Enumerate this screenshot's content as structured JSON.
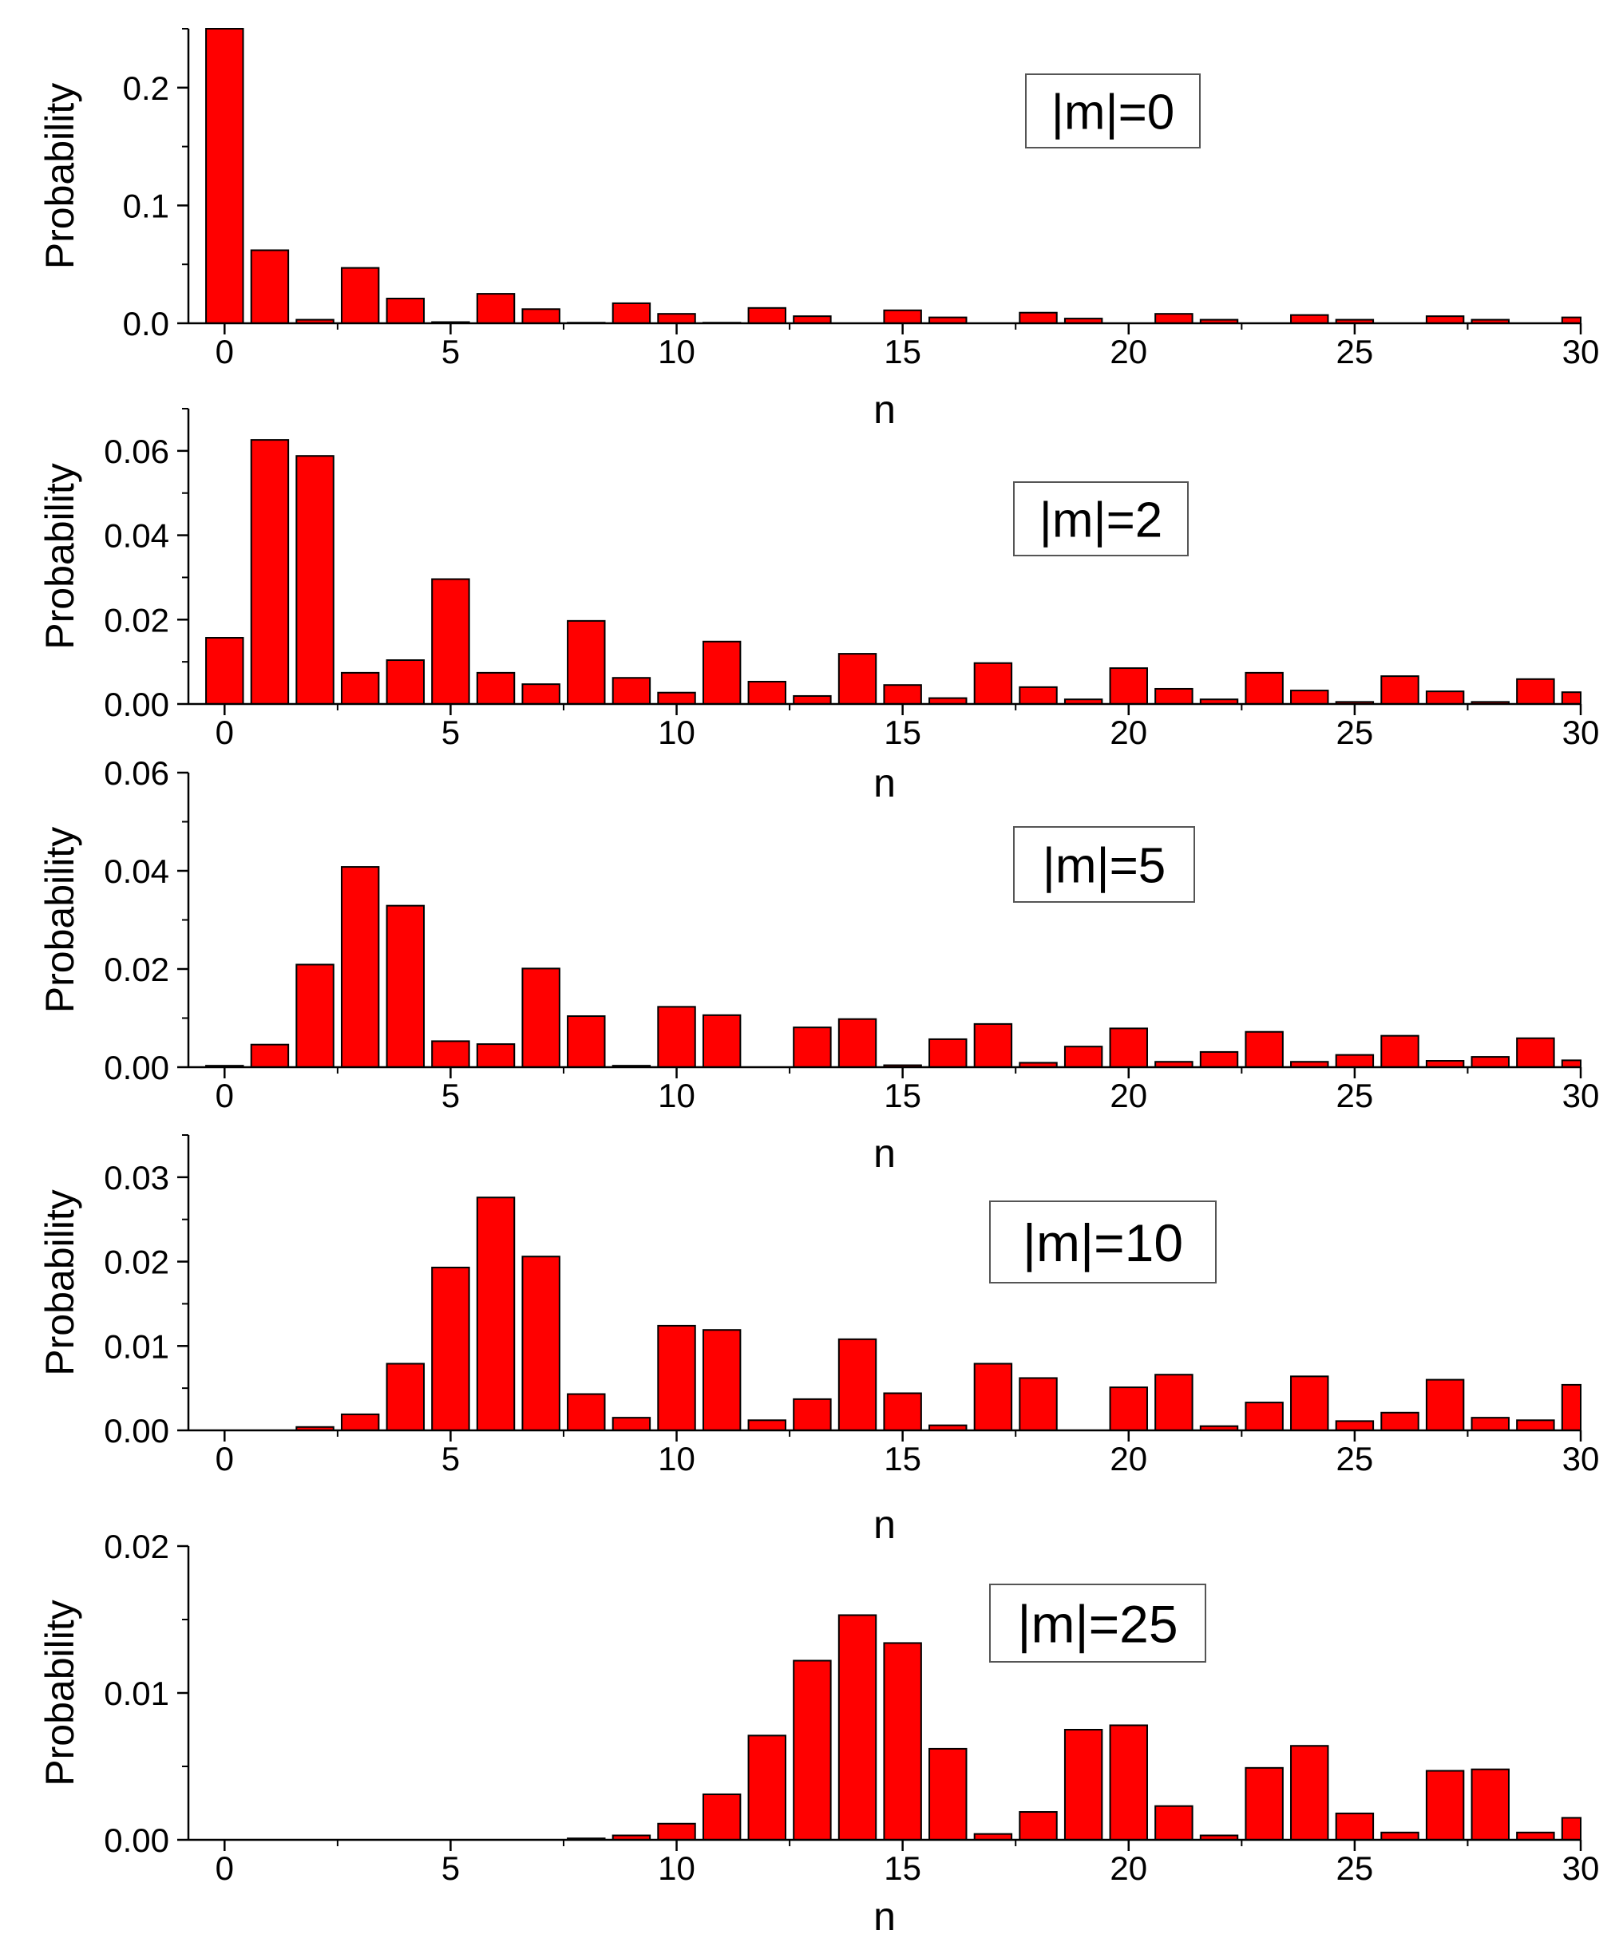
{
  "figure": {
    "background": "#ffffff",
    "bar_color": "#ff0000",
    "bar_edge_color": "#000000"
  },
  "chart_data": [
    {
      "type": "bar",
      "panel_label": "|m|=0",
      "xlabel": "n",
      "ylabel": "Probability",
      "xlim": [
        -0.8,
        30.0
      ],
      "ylim": [
        0.0,
        0.25
      ],
      "xticks": [
        0,
        5,
        10,
        15,
        20,
        25,
        30
      ],
      "xtick_labels": [
        "0",
        "5",
        "10",
        "15",
        "20",
        "25",
        "30"
      ],
      "yticks": [
        0.0,
        0.1,
        0.2
      ],
      "ytick_labels": [
        "0.0",
        "0.1",
        "0.2"
      ],
      "x": [
        0,
        1,
        2,
        3,
        4,
        5,
        6,
        7,
        8,
        9,
        10,
        11,
        12,
        13,
        14,
        15,
        16,
        17,
        18,
        19,
        20,
        21,
        22,
        23,
        24,
        25,
        26,
        27,
        28,
        29,
        30
      ],
      "values": [
        0.25,
        0.062,
        0.003,
        0.047,
        0.021,
        0.001,
        0.025,
        0.012,
        0.0005,
        0.017,
        0.008,
        0.0005,
        0.013,
        0.006,
        0.0,
        0.011,
        0.005,
        0.0,
        0.009,
        0.004,
        0.0,
        0.008,
        0.003,
        0.0,
        0.007,
        0.003,
        0.0,
        0.006,
        0.003,
        0.0,
        0.005
      ]
    },
    {
      "type": "bar",
      "panel_label": "|m|=2",
      "xlabel": "n",
      "ylabel": "Probability",
      "xlim": [
        -0.8,
        30.0
      ],
      "ylim": [
        0.0,
        0.07
      ],
      "xticks": [
        0,
        5,
        10,
        15,
        20,
        25,
        30
      ],
      "xtick_labels": [
        "0",
        "5",
        "10",
        "15",
        "20",
        "25",
        "30"
      ],
      "yticks": [
        0.0,
        0.02,
        0.04,
        0.06
      ],
      "ytick_labels": [
        "0.00",
        "0.02",
        "0.04",
        "0.06"
      ],
      "x": [
        0,
        1,
        2,
        3,
        4,
        5,
        6,
        7,
        8,
        9,
        10,
        11,
        12,
        13,
        14,
        15,
        16,
        17,
        18,
        19,
        20,
        21,
        22,
        23,
        24,
        25,
        26,
        27,
        28,
        29,
        30
      ],
      "values": [
        0.0157,
        0.0626,
        0.0588,
        0.0074,
        0.0104,
        0.0296,
        0.0074,
        0.0047,
        0.0197,
        0.0062,
        0.0027,
        0.0148,
        0.0053,
        0.0019,
        0.0119,
        0.0045,
        0.0014,
        0.0097,
        0.004,
        0.0011,
        0.0085,
        0.0036,
        0.0011,
        0.0074,
        0.0032,
        0.0005,
        0.0066,
        0.003,
        0.0005,
        0.0059,
        0.0028
      ]
    },
    {
      "type": "bar",
      "panel_label": "|m|=5",
      "xlabel": "n",
      "ylabel": "Probability",
      "xlim": [
        -0.8,
        30.0
      ],
      "ylim": [
        0.0,
        0.06
      ],
      "xticks": [
        0,
        5,
        10,
        15,
        20,
        25,
        30
      ],
      "xtick_labels": [
        "0",
        "5",
        "10",
        "15",
        "20",
        "25",
        "30"
      ],
      "yticks": [
        0.0,
        0.02,
        0.04,
        0.06
      ],
      "ytick_labels": [
        "0.00",
        "0.02",
        "0.04",
        "0.06"
      ],
      "x": [
        0,
        1,
        2,
        3,
        4,
        5,
        6,
        7,
        8,
        9,
        10,
        11,
        12,
        13,
        14,
        15,
        16,
        17,
        18,
        19,
        20,
        21,
        22,
        23,
        24,
        25,
        26,
        27,
        28,
        29,
        30
      ],
      "values": [
        0.0003,
        0.0046,
        0.0209,
        0.0408,
        0.0329,
        0.0053,
        0.0047,
        0.0201,
        0.0104,
        0.0003,
        0.0123,
        0.0106,
        0.0,
        0.0081,
        0.0098,
        0.0004,
        0.0057,
        0.0088,
        0.0009,
        0.0042,
        0.0079,
        0.0011,
        0.0031,
        0.0072,
        0.0011,
        0.0025,
        0.0064,
        0.0013,
        0.0021,
        0.0059,
        0.0014
      ]
    },
    {
      "type": "bar",
      "panel_label": "|m|=10",
      "xlabel": "n",
      "ylabel": "Probability",
      "xlim": [
        -0.8,
        30.0
      ],
      "ylim": [
        0.0,
        0.035
      ],
      "xticks": [
        0,
        5,
        10,
        15,
        20,
        25,
        30
      ],
      "xtick_labels": [
        "0",
        "5",
        "10",
        "15",
        "20",
        "25",
        "30"
      ],
      "yticks": [
        0.0,
        0.01,
        0.02,
        0.03
      ],
      "ytick_labels": [
        "0.00",
        "0.01",
        "0.02",
        "0.03"
      ],
      "x": [
        0,
        1,
        2,
        3,
        4,
        5,
        6,
        7,
        8,
        9,
        10,
        11,
        12,
        13,
        14,
        15,
        16,
        17,
        18,
        19,
        20,
        21,
        22,
        23,
        24,
        25,
        26,
        27,
        28,
        29,
        30
      ],
      "values": [
        0.0,
        0.0,
        0.0004,
        0.0019,
        0.0079,
        0.0193,
        0.0276,
        0.0206,
        0.0043,
        0.0015,
        0.0124,
        0.0119,
        0.0012,
        0.0037,
        0.0108,
        0.0044,
        0.0006,
        0.0079,
        0.0062,
        0.0,
        0.0051,
        0.0066,
        0.0005,
        0.0033,
        0.0064,
        0.0011,
        0.0021,
        0.006,
        0.0015,
        0.0012,
        0.0054
      ]
    },
    {
      "type": "bar",
      "panel_label": "|m|=25",
      "xlabel": "n",
      "ylabel": "Probability",
      "xlim": [
        -0.8,
        30.0
      ],
      "ylim": [
        0.0,
        0.02
      ],
      "xticks": [
        0,
        5,
        10,
        15,
        20,
        25,
        30
      ],
      "xtick_labels": [
        "0",
        "5",
        "10",
        "15",
        "20",
        "25",
        "30"
      ],
      "yticks": [
        0.0,
        0.01,
        0.02
      ],
      "ytick_labels": [
        "0.00",
        "0.01",
        "0.02"
      ],
      "x": [
        0,
        1,
        2,
        3,
        4,
        5,
        6,
        7,
        8,
        9,
        10,
        11,
        12,
        13,
        14,
        15,
        16,
        17,
        18,
        19,
        20,
        21,
        22,
        23,
        24,
        25,
        26,
        27,
        28,
        29,
        30
      ],
      "values": [
        0.0,
        0.0,
        0.0,
        0.0,
        0.0,
        0.0,
        0.0,
        0.0,
        0.0001,
        0.0003,
        0.0011,
        0.0031,
        0.0071,
        0.0122,
        0.0153,
        0.0134,
        0.0062,
        0.0004,
        0.0019,
        0.0075,
        0.0078,
        0.0023,
        0.0003,
        0.0049,
        0.0064,
        0.0018,
        0.0005,
        0.0047,
        0.0048,
        0.0005,
        0.0015
      ]
    }
  ]
}
